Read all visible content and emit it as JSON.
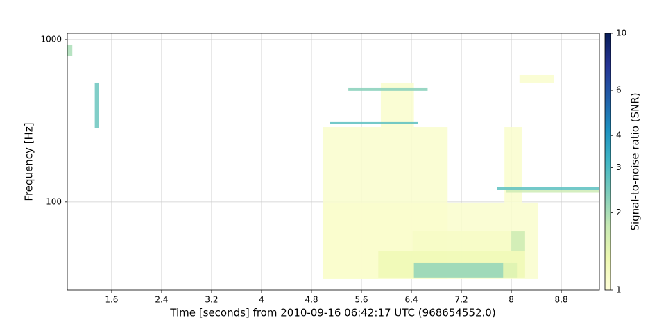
{
  "chart_data": {
    "type": "tiles",
    "xlabel": "Time [seconds] from 2010-09-16 06:42:17 UTC (968654552.0)",
    "ylabel": "Frequency [Hz]",
    "xlim": [
      0.89,
      9.41
    ],
    "xticks": [
      1.6,
      2.4,
      3.2,
      4,
      4.8,
      5.6,
      6.4,
      7.2,
      8,
      8.8
    ],
    "ylim": [
      28.6,
      1092
    ],
    "yticks": [
      100,
      1000
    ],
    "ylog": true,
    "grid": true,
    "colorbar": {
      "label": "Signal-to-noise ratio (SNR)",
      "lim": [
        1,
        10
      ],
      "ticks": [
        1,
        2,
        3,
        4,
        6,
        10
      ],
      "log": true,
      "colors": [
        "#ffffd9",
        "#edf8b1",
        "#c7e9b4",
        "#7fcdbb",
        "#41b6c4",
        "#1d91c0",
        "#225ea8",
        "#253494",
        "#081d58"
      ]
    },
    "tiles": [
      {
        "t0": 4.98,
        "t1": 6.98,
        "f0": 33.5,
        "f1": 289,
        "snr": 1.1
      },
      {
        "t0": 5.91,
        "t1": 6.44,
        "f0": 289,
        "f1": 543,
        "snr": 1.1
      },
      {
        "t0": 4.98,
        "t1": 8.43,
        "f0": 33.5,
        "f1": 99,
        "snr": 1.1
      },
      {
        "t0": 7.89,
        "t1": 8.17,
        "f0": 99,
        "f1": 289,
        "snr": 1.1
      },
      {
        "t0": 8.13,
        "t1": 8.68,
        "f0": 543,
        "f1": 605,
        "snr": 1.1
      },
      {
        "t0": 6.42,
        "t1": 8.22,
        "f0": 50,
        "f1": 66,
        "snr": 1.15
      },
      {
        "t0": 5.87,
        "t1": 8.22,
        "f0": 34.2,
        "f1": 49.8,
        "snr": 1.3
      },
      {
        "t0": 8.0,
        "t1": 8.22,
        "f0": 50,
        "f1": 66,
        "snr": 1.7
      },
      {
        "t0": 6.44,
        "t1": 7.87,
        "f0": 34.2,
        "f1": 42,
        "snr": 2.2
      },
      {
        "t0": 7.87,
        "t1": 8.09,
        "f0": 34.2,
        "f1": 42,
        "snr": 1.5
      },
      {
        "t0": 7.77,
        "t1": 9.41,
        "f0": 119,
        "f1": 123,
        "snr": 2.8
      },
      {
        "t0": 7.92,
        "t1": 9.41,
        "f0": 114,
        "f1": 118,
        "snr": 1.7
      },
      {
        "t0": 5.1,
        "t1": 6.51,
        "f0": 301,
        "f1": 310,
        "snr": 2.8
      },
      {
        "t0": 5.39,
        "t1": 6.66,
        "f0": 483,
        "f1": 502,
        "snr": 2.3
      },
      {
        "t0": 1.33,
        "t1": 1.39,
        "f0": 286,
        "f1": 543,
        "snr": 2.6
      },
      {
        "t0": 0.89,
        "t1": 0.97,
        "f0": 796,
        "f1": 924,
        "snr": 2.0
      }
    ]
  }
}
